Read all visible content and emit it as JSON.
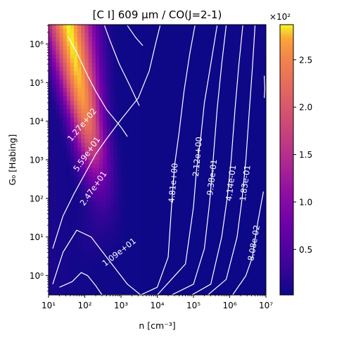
{
  "chart_data": {
    "type": "heatmap",
    "title": "[C I] 609 μm / CO(J=2-1)",
    "xlabel": "n [cm⁻³]",
    "ylabel": "G₀ [Habing]",
    "xscale": "log",
    "yscale": "log",
    "xlim": [
      10,
      10000000
    ],
    "ylim": [
      0.316,
      3162278
    ],
    "x_ticks": [
      {
        "value": 10,
        "label": "10¹"
      },
      {
        "value": 100,
        "label": "10²"
      },
      {
        "value": 1000,
        "label": "10³"
      },
      {
        "value": 10000,
        "label": "10⁴"
      },
      {
        "value": 100000,
        "label": "10⁵"
      },
      {
        "value": 1000000,
        "label": "10⁶"
      },
      {
        "value": 10000000,
        "label": "10⁷"
      }
    ],
    "y_ticks": [
      {
        "value": 1,
        "label": "10⁰"
      },
      {
        "value": 10,
        "label": "10¹"
      },
      {
        "value": 100,
        "label": "10²"
      },
      {
        "value": 1000,
        "label": "10³"
      },
      {
        "value": 10000,
        "label": "10⁴"
      },
      {
        "value": 100000,
        "label": "10⁵"
      },
      {
        "value": 1000000,
        "label": "10⁶"
      }
    ],
    "colormap": "plasma",
    "colorbar": {
      "multiplier_label": "×10²",
      "range": [
        0.02,
        2.87
      ],
      "ticks": [
        {
          "value": 0.5,
          "label": "0.5"
        },
        {
          "value": 1.0,
          "label": "1.0"
        },
        {
          "value": 1.5,
          "label": "1.5"
        },
        {
          "value": 2.0,
          "label": "2.0"
        },
        {
          "value": 2.5,
          "label": "2.5"
        }
      ]
    },
    "peak": {
      "log_n": 2.0,
      "log_G0": 6.4,
      "value": 287
    },
    "contours": [
      {
        "level": 127,
        "label": "1.27e+02",
        "label_at": [
          85,
          8000
        ],
        "points": [
          [
            35,
            1500000
          ],
          [
            60,
            600000
          ],
          [
            120,
            150000
          ],
          [
            200,
            60000
          ],
          [
            400,
            20000
          ],
          [
            1000,
            7000
          ],
          [
            1500,
            4000
          ]
        ]
      },
      {
        "level": 55.9,
        "label": "5.59e+01",
        "label_at": [
          115,
          1400
        ],
        "points": [
          [
            350,
            3000000
          ],
          [
            500,
            1200000
          ],
          [
            900,
            300000
          ],
          [
            1800,
            80000
          ],
          [
            3200,
            25000
          ]
        ]
      },
      {
        "level": 24.7,
        "label": "2.47e+01",
        "label_at": [
          175,
          180
        ],
        "points": [
          [
            1500,
            3000000
          ],
          [
            2500,
            1500000
          ],
          [
            4000,
            900000
          ]
        ]
      },
      {
        "level": 10.9,
        "label": "1.09e+01",
        "label_at": [
          900,
          4
        ],
        "points": [
          [
            13,
            5
          ],
          [
            25,
            35
          ],
          [
            50,
            130
          ],
          [
            110,
            500
          ],
          [
            200,
            1400
          ],
          [
            400,
            3500
          ],
          [
            1000,
            11000
          ],
          [
            3000,
            40000
          ],
          [
            6000,
            200000
          ],
          [
            9000,
            1000000
          ],
          [
            12000,
            3000000
          ]
        ]
      },
      {
        "level": 4.81,
        "label": "4.81e+00",
        "label_at": [
          28000,
          250
        ],
        "points": [
          [
            13,
            0.6
          ],
          [
            25,
            4
          ],
          [
            60,
            15
          ],
          [
            150,
            10
          ],
          [
            400,
            3
          ],
          [
            1500,
            0.6
          ],
          [
            3500,
            0.316
          ],
          [
            10000,
            0.5
          ],
          [
            20000,
            3
          ],
          [
            25000,
            70
          ],
          [
            30000,
            700
          ],
          [
            40000,
            5000
          ],
          [
            55000,
            60000
          ],
          [
            80000,
            600000
          ],
          [
            110000,
            3000000
          ]
        ]
      },
      {
        "level": 2.12,
        "label": "2.12e+00",
        "label_at": [
          130000,
          1200
        ],
        "points": [
          [
            20,
            0.5
          ],
          [
            45,
            0.7
          ],
          [
            80,
            1.2
          ],
          [
            120,
            1.0
          ],
          [
            200,
            0.55
          ],
          [
            300,
            0.316
          ],
          [
            10000,
            0.316
          ],
          [
            60000,
            2
          ],
          [
            100000,
            60
          ],
          [
            120000,
            500
          ],
          [
            160000,
            4000
          ],
          [
            200000,
            30000
          ],
          [
            300000,
            300000
          ],
          [
            450000,
            3000000
          ]
        ]
      },
      {
        "level": 0.938,
        "label": "9.38e-01",
        "label_at": [
          330000,
          350
        ],
        "points": [
          [
            25000,
            0.316
          ],
          [
            100000,
            0.6
          ],
          [
            200000,
            5
          ],
          [
            280000,
            80
          ],
          [
            350000,
            1000
          ],
          [
            450000,
            20000
          ],
          [
            600000,
            300000
          ],
          [
            800000,
            3000000
          ]
        ]
      },
      {
        "level": 0.414,
        "label": "4.14e-01",
        "label_at": [
          1100000,
          250
        ],
        "points": [
          [
            90000,
            0.316
          ],
          [
            300000,
            0.6
          ],
          [
            600000,
            10
          ],
          [
            850000,
            100
          ],
          [
            1100000,
            1000
          ],
          [
            1400000,
            20000
          ],
          [
            1800000,
            300000
          ],
          [
            2300000,
            3000000
          ]
        ]
      },
      {
        "level": 0.183,
        "label": "1.83e-01",
        "label_at": [
          2700000,
          250
        ],
        "points": [
          [
            250000,
            0.316
          ],
          [
            800000,
            0.8
          ],
          [
            1600000,
            10
          ],
          [
            2200000,
            100
          ],
          [
            2800000,
            1000
          ],
          [
            3500000,
            20000
          ],
          [
            4300000,
            300000
          ],
          [
            5000000,
            3000000
          ]
        ]
      },
      {
        "level": 0.0808,
        "label": "8.08e-02",
        "label_at": [
          4700000,
          7
        ],
        "points": [
          [
            1200000,
            0.316
          ],
          [
            2800000,
            1
          ],
          [
            4200000,
            3
          ],
          [
            6000000,
            25
          ],
          [
            8500000,
            150
          ]
        ]
      }
    ],
    "extra_segments": [
      {
        "points": [
          [
            9000000,
            40000
          ],
          [
            9300000,
            70000
          ],
          [
            9000000,
            150000
          ]
        ]
      }
    ]
  }
}
